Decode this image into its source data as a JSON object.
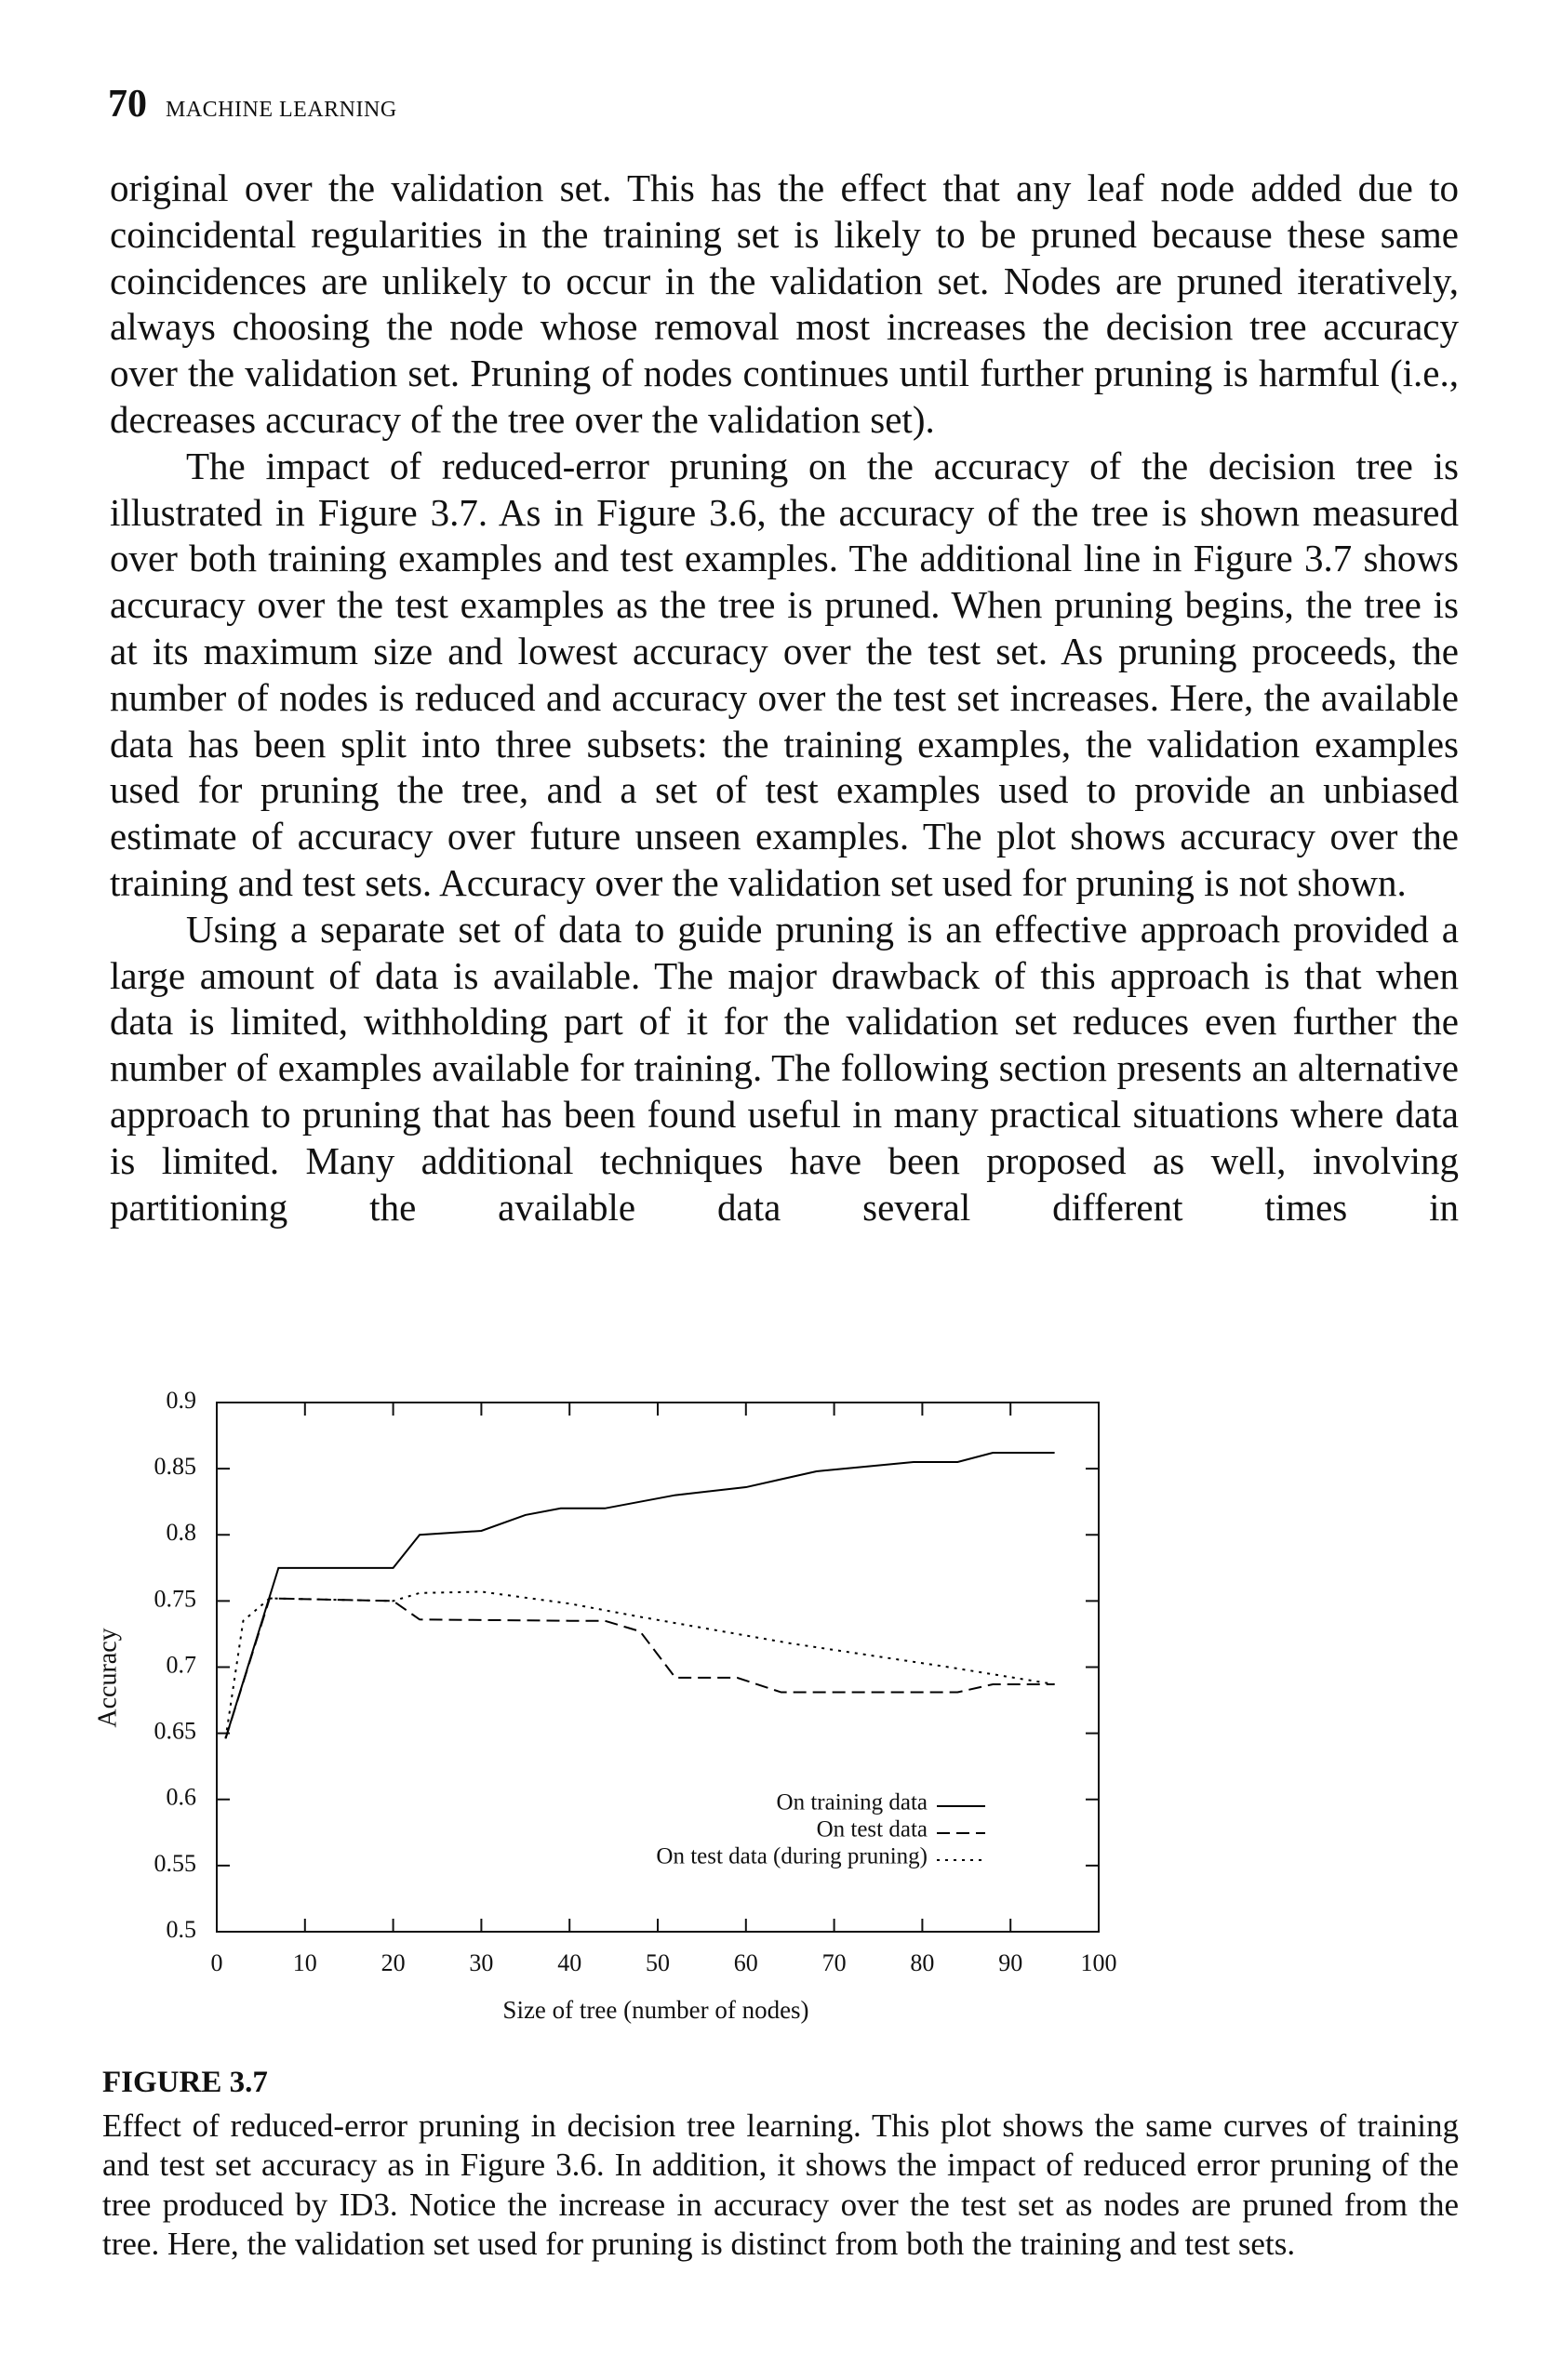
{
  "header": {
    "page_number": "70",
    "running_title": "MACHINE LEARNING"
  },
  "paragraphs": [
    "original over the validation set. This has the effect that any leaf node added due to coincidental regularities in the training set is likely to be pruned because these same coincidences are unlikely to occur in the validation set. Nodes are pruned iteratively, always choosing the node whose removal most increases the decision tree accuracy over the validation set. Pruning of nodes continues until further pruning is harmful (i.e., decreases accuracy of the tree over the validation set).",
    "The impact of reduced-error pruning on the accuracy of the decision tree is illustrated in Figure 3.7. As in Figure 3.6, the accuracy of the tree is shown measured over both training examples and test examples. The additional line in Figure 3.7 shows accuracy over the test examples as the tree is pruned. When pruning begins, the tree is at its maximum size and lowest accuracy over the test set. As pruning proceeds, the number of nodes is reduced and accuracy over the test set increases. Here, the available data has been split into three subsets: the training examples, the validation examples used for pruning the tree, and a set of test examples used to provide an unbiased estimate of accuracy over future unseen examples. The plot shows accuracy over the training and test sets. Accuracy over the validation set used for pruning is not shown.",
    "Using a separate set of data to guide pruning is an effective approach provided a large amount of data is available. The major drawback of this approach is that when data is limited, withholding part of it for the validation set reduces even further the number of examples available for training. The following section presents an alternative approach to pruning that has been found useful in many practical situations where data is limited. Many additional techniques have been proposed as well, involving partitioning the available data several different times in"
  ],
  "chart_data": {
    "type": "line",
    "xlabel": "Size of tree (number of nodes)",
    "ylabel": "Accuracy",
    "xlim": [
      0,
      100
    ],
    "xticks": [
      0,
      10,
      20,
      30,
      40,
      50,
      60,
      70,
      80,
      90,
      100
    ],
    "ylim": [
      0.5,
      0.9
    ],
    "yticks": [
      0.5,
      0.55,
      0.6,
      0.65,
      0.7,
      0.75,
      0.8,
      0.85,
      0.9
    ],
    "legend": "lower right",
    "series": [
      {
        "name": "On training data",
        "color": "#000000",
        "dash": "solid",
        "x": [
          1,
          7,
          20,
          23,
          30,
          35,
          39,
          44,
          52,
          60,
          64,
          68,
          79,
          84,
          88,
          95
        ],
        "values": [
          0.646,
          0.775,
          0.775,
          0.8,
          0.803,
          0.815,
          0.82,
          0.82,
          0.83,
          0.836,
          0.842,
          0.848,
          0.855,
          0.855,
          0.862,
          0.862
        ]
      },
      {
        "name": "On test data",
        "color": "#000000",
        "dash": "dashed",
        "x": [
          1,
          6,
          20,
          23,
          40,
          44,
          48,
          52,
          59,
          64,
          84,
          88,
          95
        ],
        "values": [
          0.646,
          0.752,
          0.75,
          0.736,
          0.735,
          0.735,
          0.727,
          0.692,
          0.692,
          0.681,
          0.681,
          0.687,
          0.687
        ]
      },
      {
        "name": "On test data (during pruning)",
        "color": "#000000",
        "dash": "dotted",
        "x": [
          1,
          3,
          6,
          20,
          23,
          30,
          40,
          48,
          65,
          83,
          95
        ],
        "values": [
          0.646,
          0.735,
          0.752,
          0.75,
          0.756,
          0.757,
          0.748,
          0.738,
          0.718,
          0.7,
          0.687
        ]
      }
    ]
  },
  "figure": {
    "label": "FIGURE 3.7",
    "caption": "Effect of reduced-error pruning in decision tree learning. This plot shows the same curves of training and test set accuracy as in Figure 3.6. In addition, it shows the impact of reduced error pruning of the tree produced by ID3. Notice the increase in accuracy over the test set as nodes are pruned from the tree. Here, the validation set used for pruning is distinct from both the training and test sets."
  }
}
